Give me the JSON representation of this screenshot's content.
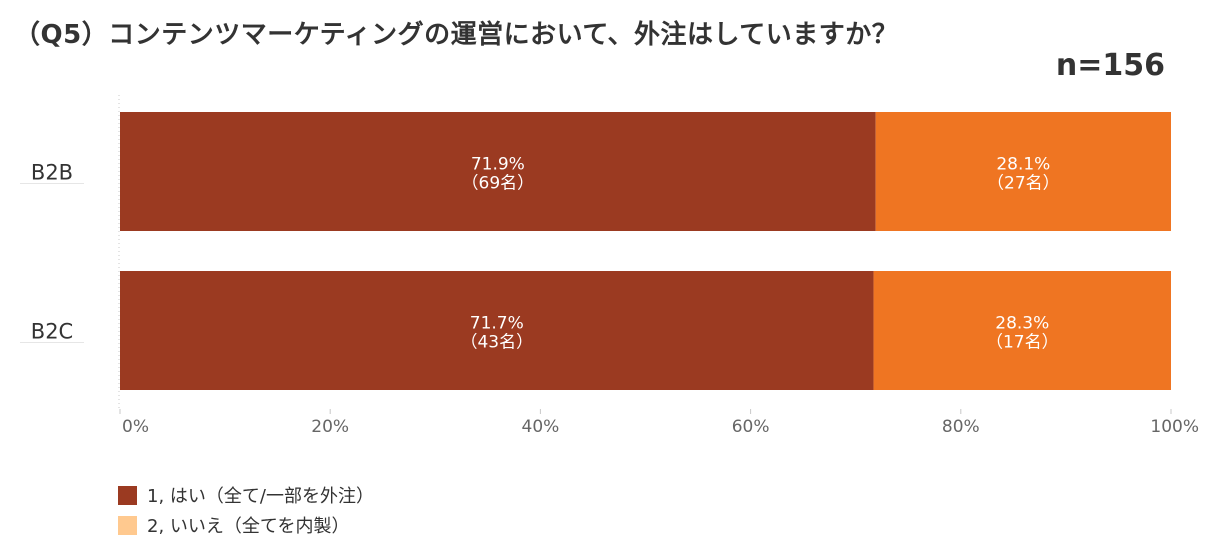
{
  "title": "（Q5）コンテンツマーケティングの運営において、外注はしていますか？",
  "sample_size": "n=156",
  "colors": {
    "series_yes": "#9b3a21",
    "series_no": "#ef7522",
    "legend_no_swatch": "#ffc98f"
  },
  "chart_data": {
    "type": "bar",
    "orientation": "horizontal",
    "stacked": true,
    "categories": [
      "B2B",
      "B2C"
    ],
    "series": [
      {
        "name": "1, はい（全て/一部を外注）",
        "values": [
          71.9,
          71.7
        ],
        "labels": [
          "71.9%",
          "71.7%"
        ],
        "counts": [
          "（69名）",
          "（43名）"
        ]
      },
      {
        "name": "2, いいえ（全てを内製）",
        "values": [
          28.1,
          28.3
        ],
        "labels": [
          "28.1%",
          "28.3%"
        ],
        "counts": [
          "（27名）",
          "（17名）"
        ]
      }
    ],
    "x_ticks": [
      "0%",
      "20%",
      "40%",
      "60%",
      "80%",
      "100%"
    ],
    "xlim": [
      0,
      100
    ],
    "grid": false,
    "legend_position": "bottom-left"
  }
}
